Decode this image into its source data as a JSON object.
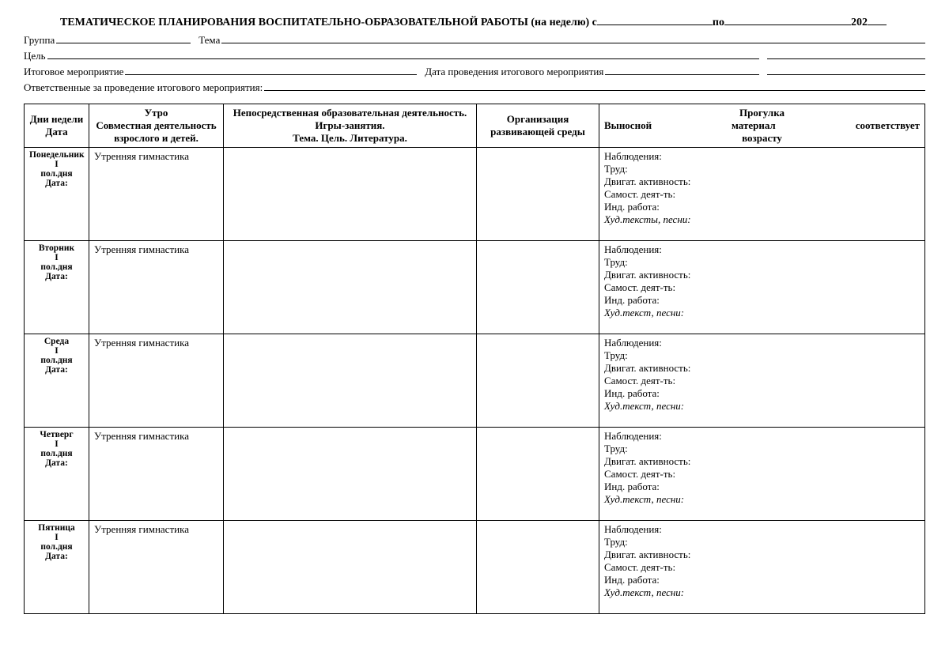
{
  "colors": {
    "text": "#000000",
    "border": "#000000",
    "background": "#ffffff"
  },
  "fonts": {
    "family": "Times New Roman",
    "body_size_pt": 10,
    "title_size_pt": 11
  },
  "header": {
    "title_prefix": "ТЕМАТИЧЕСКОЕ   ПЛАНИРОВАНИЯ ВОСПИТАТЕЛЬНО-ОБРАЗОВАТЕЛЬНОЙ РАБОТЫ (на неделю) с",
    "title_mid": "по",
    "title_year": "202",
    "group_label": "Группа",
    "theme_label": "Тема",
    "goal_label": "Цель",
    "final_event_label": "Итоговое мероприятие",
    "final_event_date_label": "Дата проведения итогового мероприятия",
    "responsible_label": "Ответственные за проведение итогового мероприятия:"
  },
  "table": {
    "columns": {
      "day": "Дни недели\nДата",
      "morning": "Утро\nСовместная деятельность взрослого и детей.",
      "edu": "Непосредственная образовательная деятельность. Игры-занятия.\nТема. Цель. Литература.",
      "env": "Организация развивающей среды",
      "walk_title": "Прогулка",
      "walk_sub1": "Выносной",
      "walk_sub2": "материал",
      "walk_sub3": "соответствует",
      "walk_age": "возрасту"
    },
    "rows": [
      {
        "day_name": "Понедельник",
        "roman": "I",
        "half": "пол.дня",
        "date_label": "Дата:",
        "morning": "Утренняя гимнастика",
        "walk": {
          "obs": "Наблюдения:",
          "work": "Труд:",
          "motor": "Двигат. активность:",
          "indep": "Самост. деят-ть:",
          "ind": "Инд. работа:",
          "art": "Худ.тексты, песни:"
        }
      },
      {
        "day_name": "Вторник",
        "roman": "I",
        "half": "пол.дня",
        "date_label": "Дата:",
        "morning": "Утренняя гимнастика",
        "walk": {
          "obs": "Наблюдения:",
          "work": "Труд:",
          "motor": "Двигат. активность:",
          "indep": "Самост. деят-ть:",
          "ind": "Инд. работа:",
          "art": "Худ.текст, песни:"
        }
      },
      {
        "day_name": "Среда",
        "roman": "I",
        "half": "пол.дня",
        "date_label": "Дата:",
        "morning": "Утренняя гимнастика",
        "walk": {
          "obs": "Наблюдения:",
          "work": "Труд:",
          "motor": "Двигат. активность:",
          "indep": "Самост. деят-ть:",
          "ind": "Инд. работа:",
          "art": "Худ.текст, песни:"
        }
      },
      {
        "day_name": "Четверг",
        "roman": "I",
        "half": "пол.дня",
        "date_label": "Дата:",
        "morning": "Утренняя гимнастика",
        "walk": {
          "obs": "Наблюдения:",
          "work": "Труд:",
          "motor": "Двигат. активность:",
          "indep": "Самост. деят-ть:",
          "ind": "Инд. работа:",
          "art": "Худ.текст, песни:"
        }
      },
      {
        "day_name": "Пятница",
        "roman": "I",
        "half": "пол.дня",
        "date_label": "Дата:",
        "morning": "Утренняя гимнастика",
        "walk": {
          "obs": "Наблюдения:",
          "work": "Труд:",
          "motor": "Двигат. активность:",
          "indep": "Самост. деят-ть:",
          "ind": "Инд. работа:",
          "art": "Худ.текст, песни:"
        }
      }
    ]
  }
}
